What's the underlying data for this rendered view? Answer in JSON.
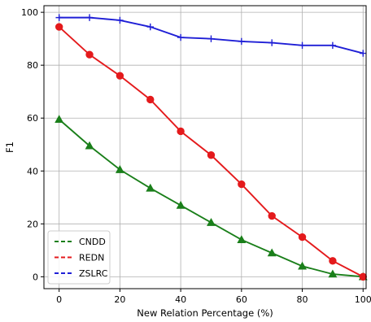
{
  "chart_data": {
    "type": "line",
    "title": "",
    "xlabel": "New Relation Percentage (%)",
    "ylabel": "F1",
    "x": [
      0,
      10,
      20,
      30,
      40,
      50,
      60,
      70,
      80,
      90,
      100
    ],
    "xlim": [
      -5,
      101
    ],
    "ylim": [
      -4.5,
      102.5
    ],
    "xticks": [
      0,
      20,
      40,
      60,
      80,
      100
    ],
    "yticks": [
      0,
      20,
      40,
      60,
      80,
      100
    ],
    "grid": true,
    "legend_position": "lower-left",
    "series": [
      {
        "name": "CNDD",
        "color": "#1a7f1a",
        "marker": "triangle",
        "values": [
          59.5,
          49.5,
          40.5,
          33.5,
          27.0,
          20.5,
          14.0,
          9.0,
          4.0,
          1.0,
          0.0
        ]
      },
      {
        "name": "REDN",
        "color": "#e41a1c",
        "marker": "circle",
        "values": [
          94.5,
          84.0,
          76.0,
          67.0,
          55.0,
          46.0,
          35.0,
          23.0,
          15.0,
          6.0,
          0.0
        ]
      },
      {
        "name": "ZSLRC",
        "color": "#1f1fd6",
        "marker": "plus",
        "values": [
          98.0,
          98.0,
          97.0,
          94.5,
          90.5,
          90.0,
          89.0,
          88.5,
          87.5,
          87.5,
          84.5
        ]
      }
    ]
  }
}
